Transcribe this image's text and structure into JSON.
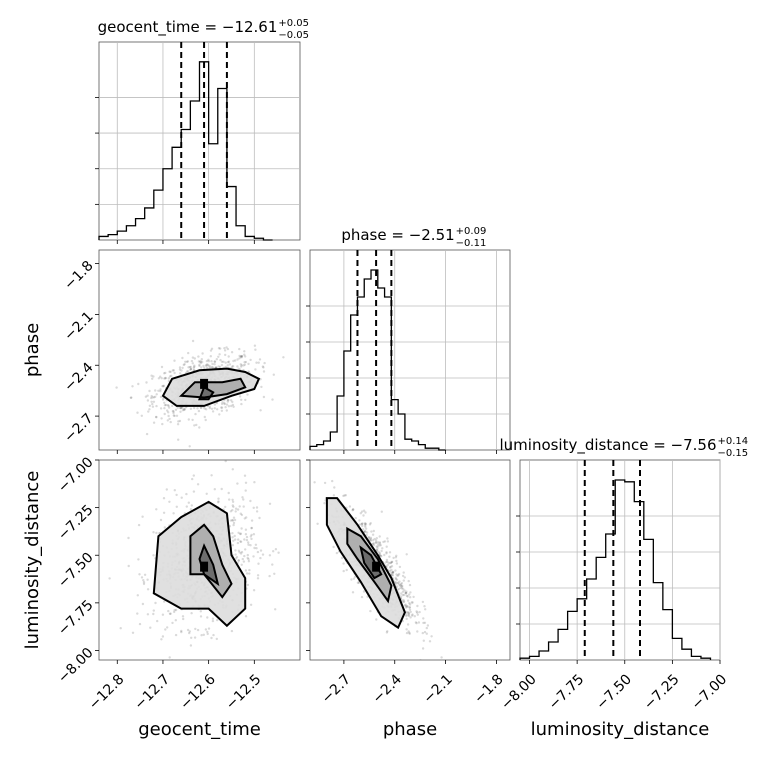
{
  "chart_data": {
    "type": "corner",
    "parameters": [
      "geocent_time",
      "phase",
      "luminosity_distance"
    ],
    "axis_labels": {
      "geocent_time": "geocent_time",
      "phase": "phase",
      "luminosity_distance": "luminosity_distance"
    },
    "ranges": {
      "geocent_time": [
        -12.84,
        -12.4
      ],
      "phase": [
        -2.9,
        -1.72
      ],
      "luminosity_distance": [
        -8.05,
        -7.0
      ]
    },
    "ticks": {
      "geocent_time": {
        "values": [
          -12.8,
          -12.7,
          -12.6,
          -12.5
        ],
        "labels": [
          "−12.8",
          "−12.7",
          "−12.6",
          "−12.5"
        ]
      },
      "phase": {
        "values": [
          -2.7,
          -2.4,
          -2.1,
          -1.8
        ],
        "labels": [
          "−2.7",
          "−2.4",
          "−2.1",
          "−1.8"
        ]
      },
      "luminosity_distance": {
        "values": [
          -8.0,
          -7.75,
          -7.5,
          -7.25,
          -7.0
        ],
        "labels": [
          "−8.00",
          "−7.75",
          "−7.50",
          "−7.25",
          "−7.00"
        ]
      }
    },
    "titles": [
      {
        "param": "geocent_time",
        "prefix": "geocent_time = −12.61",
        "sup": "+0.05",
        "sub": "−0.05"
      },
      {
        "param": "phase",
        "prefix": "phase = −2.51",
        "sup": "+0.09",
        "sub": "−0.11"
      },
      {
        "param": "luminosity_distance",
        "prefix": "luminosity_distance = −7.56",
        "sup": "+0.14",
        "sub": "−0.15"
      }
    ],
    "quantiles": {
      "geocent_time": [
        -12.66,
        -12.61,
        -12.56
      ],
      "phase": [
        -2.62,
        -2.51,
        -2.42
      ],
      "luminosity_distance": [
        -7.71,
        -7.56,
        -7.42
      ]
    },
    "histograms": {
      "geocent_time": {
        "edges": [
          -12.84,
          -12.82,
          -12.8,
          -12.78,
          -12.76,
          -12.74,
          -12.72,
          -12.7,
          -12.68,
          -12.66,
          -12.64,
          -12.62,
          -12.6,
          -12.58,
          -12.56,
          -12.54,
          -12.52,
          -12.5,
          -12.48,
          -12.46
        ],
        "counts": [
          2,
          3,
          5,
          8,
          12,
          18,
          28,
          40,
          52,
          62,
          78,
          100,
          54,
          85,
          30,
          8,
          2,
          1,
          0
        ]
      },
      "phase": {
        "edges": [
          -2.9,
          -2.86,
          -2.82,
          -2.78,
          -2.74,
          -2.7,
          -2.66,
          -2.62,
          -2.58,
          -2.54,
          -2.5,
          -2.46,
          -2.42,
          -2.38,
          -2.34,
          -2.3,
          -2.26,
          -2.22,
          -2.18,
          -2.14,
          -2.1
        ],
        "counts": [
          2,
          3,
          5,
          10,
          30,
          55,
          75,
          85,
          95,
          100,
          90,
          85,
          28,
          20,
          6,
          5,
          3,
          1,
          1,
          0
        ]
      },
      "luminosity_distance": {
        "edges": [
          -8.05,
          -8.0,
          -7.95,
          -7.9,
          -7.85,
          -7.8,
          -7.75,
          -7.7,
          -7.65,
          -7.6,
          -7.55,
          -7.5,
          -7.45,
          -7.4,
          -7.35,
          -7.3,
          -7.25,
          -7.2,
          -7.15,
          -7.1,
          -7.05
        ],
        "counts": [
          1,
          2,
          5,
          10,
          17,
          27,
          34,
          45,
          57,
          70,
          100,
          99,
          88,
          67,
          43,
          28,
          12,
          6,
          2,
          1
        ]
      }
    },
    "scatter_samples": 900,
    "medians_2d": {
      "phase_vs_geocent_time": [
        -12.61,
        -2.51
      ],
      "luminosity_distance_vs_geocent_time": [
        -12.61,
        -7.56
      ],
      "luminosity_distance_vs_phase": [
        -2.51,
        -7.56
      ]
    },
    "colors": {
      "line": "#000000",
      "scatter": "#555555",
      "density": "#666666",
      "grid": "#bdbdbd"
    }
  }
}
